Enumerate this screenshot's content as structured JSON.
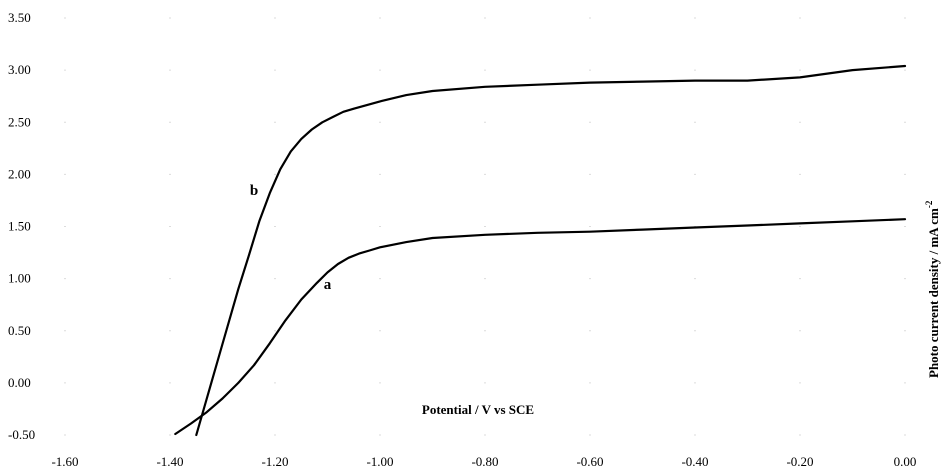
{
  "chart_data": {
    "type": "line",
    "title": "",
    "xlabel": "Potential / V vs SCE",
    "ylabel": "Photo current density / mA cm",
    "ylabel_superscript": "-2",
    "xlim": [
      -1.6,
      0.0
    ],
    "ylim": [
      -0.5,
      3.5
    ],
    "xticks": [
      "-1.60",
      "-1.40",
      "-1.20",
      "-1.00",
      "-0.80",
      "-0.60",
      "-0.40",
      "-0.20",
      "0.00"
    ],
    "yticks": [
      "3.50",
      "3.00",
      "2.50",
      "2.00",
      "1.50",
      "1.00",
      "0.50",
      "0.00",
      "-0.50"
    ],
    "series": [
      {
        "name": "a",
        "x": [
          -1.39,
          -1.36,
          -1.33,
          -1.3,
          -1.27,
          -1.24,
          -1.21,
          -1.18,
          -1.15,
          -1.12,
          -1.1,
          -1.08,
          -1.06,
          -1.04,
          -1.02,
          -1.0,
          -0.95,
          -0.9,
          -0.8,
          -0.7,
          -0.6,
          -0.5,
          -0.4,
          -0.3,
          -0.2,
          -0.1,
          0.0
        ],
        "y": [
          -0.49,
          -0.39,
          -0.28,
          -0.15,
          0.0,
          0.17,
          0.38,
          0.6,
          0.8,
          0.96,
          1.06,
          1.14,
          1.2,
          1.24,
          1.27,
          1.3,
          1.35,
          1.39,
          1.42,
          1.44,
          1.45,
          1.47,
          1.49,
          1.51,
          1.53,
          1.55,
          1.57
        ]
      },
      {
        "name": "b",
        "x": [
          -1.35,
          -1.33,
          -1.31,
          -1.29,
          -1.27,
          -1.25,
          -1.23,
          -1.21,
          -1.19,
          -1.17,
          -1.15,
          -1.13,
          -1.11,
          -1.09,
          -1.07,
          -1.05,
          -1.0,
          -0.95,
          -0.9,
          -0.8,
          -0.7,
          -0.6,
          -0.5,
          -0.4,
          -0.3,
          -0.2,
          -0.1,
          0.0
        ],
        "y": [
          -0.5,
          -0.15,
          0.2,
          0.55,
          0.9,
          1.22,
          1.55,
          1.82,
          2.05,
          2.22,
          2.34,
          2.43,
          2.5,
          2.55,
          2.6,
          2.63,
          2.7,
          2.76,
          2.8,
          2.84,
          2.86,
          2.88,
          2.89,
          2.9,
          2.9,
          2.93,
          3.0,
          3.04
        ]
      }
    ],
    "annotations": [
      {
        "text": "a",
        "x": -1.1,
        "y": 0.9
      },
      {
        "text": "b",
        "x": -1.24,
        "y": 1.8
      }
    ]
  }
}
